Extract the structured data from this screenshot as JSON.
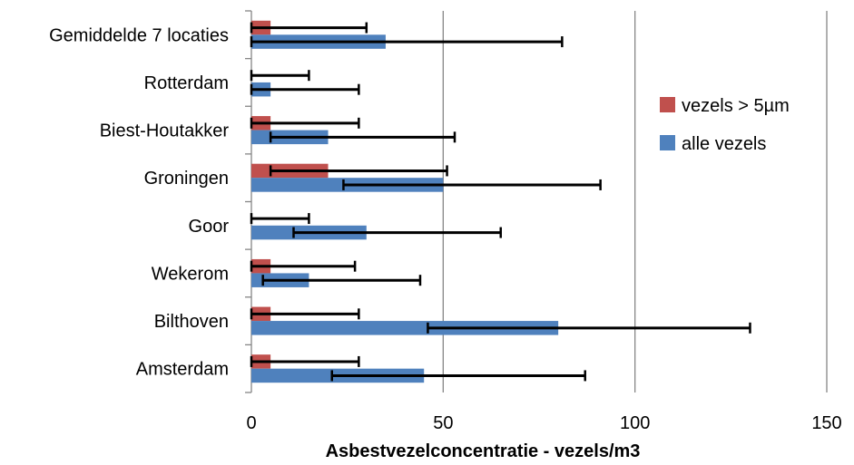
{
  "chart_data": {
    "type": "bar",
    "orientation": "horizontal",
    "categories": [
      "Gemiddelde 7 locaties",
      "Rotterdam",
      "Biest-Houtakker",
      "Groningen",
      "Goor",
      "Wekerom",
      "Bilthoven",
      "Amsterdam"
    ],
    "series": [
      {
        "name": "vezels > 5µm",
        "color": "#c0504d",
        "values": [
          5,
          0,
          5,
          20,
          0,
          5,
          5,
          5
        ],
        "error_low": [
          0,
          0,
          0,
          5,
          0,
          0,
          0,
          0
        ],
        "error_high": [
          30,
          15,
          28,
          51,
          15,
          27,
          28,
          28
        ]
      },
      {
        "name": "alle vezels",
        "color": "#4f81bd",
        "values": [
          35,
          5,
          20,
          50,
          30,
          15,
          80,
          45
        ],
        "error_low": [
          0,
          0,
          5,
          24,
          11,
          3,
          46,
          21
        ],
        "error_high": [
          81,
          28,
          53,
          91,
          65,
          44,
          130,
          87
        ]
      }
    ],
    "xlabel": "Asbestvezelconcentratie - vezels/m3",
    "xlim": [
      0,
      150
    ],
    "xticks": [
      "0",
      "50",
      "100",
      "150"
    ],
    "grid": "vertical",
    "legend_position": "right"
  }
}
